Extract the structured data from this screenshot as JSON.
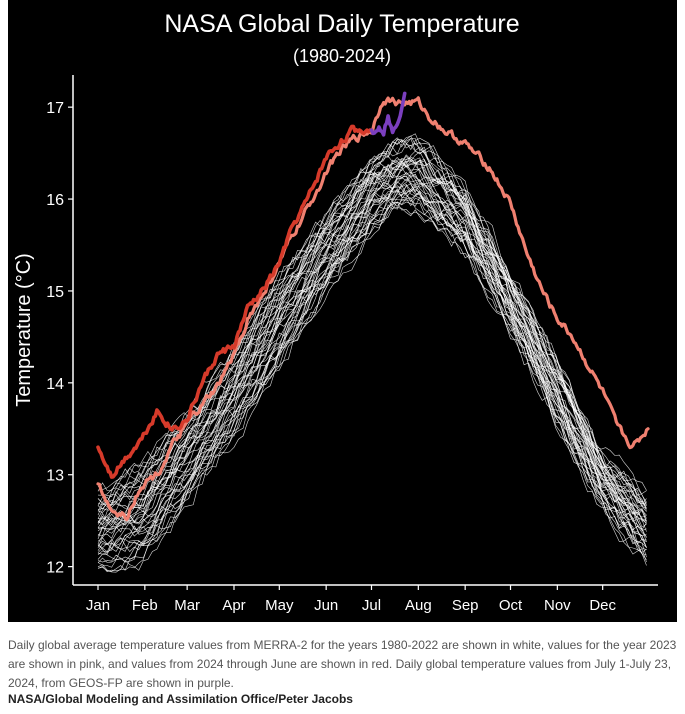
{
  "caption": "Daily global average temperature values from MERRA-2 for the years 1980-2022 are shown in white, values for the year 2023 are shown in pink, and values from 2024 through June are shown in red. Daily global temperature values from July 1-July 23, 2024, from GEOS-FP are shown in purple.",
  "credit": "NASA/Global Modeling and Assimilation Office/Peter Jacobs",
  "chart_data": {
    "type": "line",
    "title": "NASA Global Daily Temperature",
    "subtitle": "(1980-2024)",
    "xlabel": "",
    "ylabel": "Temperature (°C)",
    "xlim": [
      1,
      365
    ],
    "ylim": [
      11.8,
      17.35
    ],
    "y_ticks": [
      12,
      13,
      14,
      15,
      16,
      17
    ],
    "x_ticks": [
      {
        "label": "Jan",
        "day": 1
      },
      {
        "label": "Feb",
        "day": 32
      },
      {
        "label": "Mar",
        "day": 60
      },
      {
        "label": "Apr",
        "day": 91
      },
      {
        "label": "May",
        "day": 121
      },
      {
        "label": "Jun",
        "day": 152
      },
      {
        "label": "Jul",
        "day": 182
      },
      {
        "label": "Aug",
        "day": 213
      },
      {
        "label": "Sep",
        "day": 244
      },
      {
        "label": "Oct",
        "day": 274
      },
      {
        "label": "Nov",
        "day": 305
      },
      {
        "label": "Dec",
        "day": 335
      }
    ],
    "grid": false,
    "legend": "none",
    "background": "#000000",
    "series": [
      {
        "label": "1980-2022",
        "color": "#ffffff",
        "envelope": {
          "x": [
            1,
            30,
            60,
            91,
            121,
            152,
            182,
            200,
            213,
            244,
            274,
            305,
            335,
            365
          ],
          "low": [
            11.9,
            12.0,
            12.6,
            13.3,
            14.1,
            14.9,
            15.6,
            15.8,
            15.8,
            15.4,
            14.5,
            13.5,
            12.6,
            12.0
          ],
          "high": [
            12.9,
            13.2,
            13.8,
            14.5,
            15.3,
            15.9,
            16.5,
            16.7,
            16.7,
            16.2,
            15.3,
            14.3,
            13.3,
            12.9
          ]
        }
      },
      {
        "label": "2023",
        "color": "#f08070",
        "x": [
          1,
          10,
          20,
          30,
          40,
          50,
          60,
          70,
          80,
          91,
          100,
          110,
          121,
          130,
          140,
          152,
          160,
          170,
          182,
          190,
          200,
          213,
          220,
          230,
          244,
          250,
          260,
          274,
          285,
          295,
          305,
          315,
          325,
          335,
          345,
          355,
          365
        ],
        "y": [
          12.9,
          12.6,
          12.55,
          12.9,
          13.0,
          13.3,
          13.55,
          13.75,
          13.95,
          14.3,
          14.7,
          14.95,
          15.3,
          15.6,
          15.9,
          16.3,
          16.5,
          16.65,
          16.75,
          17.1,
          17.05,
          17.05,
          16.9,
          16.75,
          16.6,
          16.5,
          16.35,
          15.95,
          15.4,
          15.0,
          14.7,
          14.5,
          14.2,
          13.9,
          13.5,
          13.3,
          13.5
        ]
      },
      {
        "label": "2024 through June",
        "color": "#d63a2a",
        "x": [
          1,
          10,
          20,
          30,
          40,
          50,
          60,
          70,
          80,
          91,
          100,
          110,
          121,
          130,
          140,
          152,
          160,
          170,
          182
        ],
        "y": [
          13.3,
          13.0,
          13.2,
          13.4,
          13.7,
          13.5,
          13.6,
          14.0,
          14.3,
          14.4,
          14.8,
          15.0,
          15.3,
          15.7,
          16.0,
          16.45,
          16.6,
          16.75,
          16.75
        ]
      },
      {
        "label": "July 1-July 23, 2024 (GEOS-FP)",
        "color": "#7b3fbf",
        "x": [
          182,
          186,
          190,
          193,
          196,
          200,
          204
        ],
        "y": [
          16.75,
          16.8,
          16.75,
          16.9,
          16.7,
          16.9,
          17.15
        ]
      }
    ]
  }
}
